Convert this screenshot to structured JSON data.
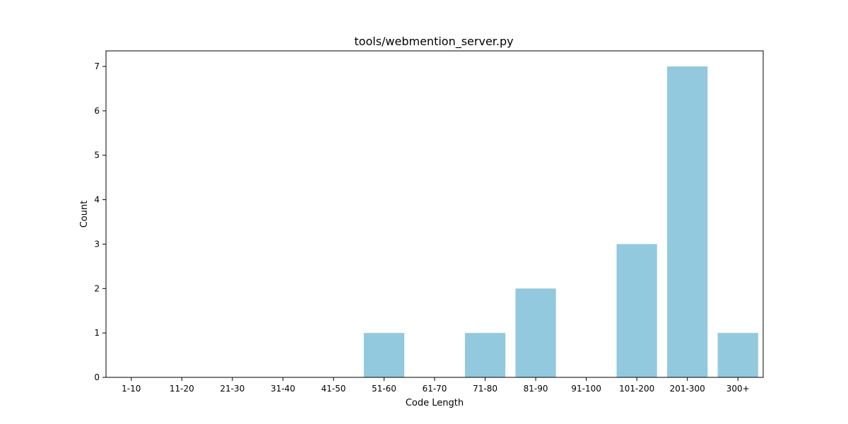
{
  "chart_data": {
    "type": "bar",
    "title": "tools/webmention_server.py",
    "xlabel": "Code Length",
    "ylabel": "Count",
    "categories": [
      "1-10",
      "11-20",
      "21-30",
      "31-40",
      "41-50",
      "51-60",
      "61-70",
      "71-80",
      "81-90",
      "91-100",
      "101-200",
      "201-300",
      "300+"
    ],
    "values": [
      0,
      0,
      0,
      0,
      0,
      1,
      0,
      1,
      2,
      0,
      3,
      7,
      1
    ],
    "ylim": [
      0,
      7.35
    ],
    "yticks": [
      0,
      1,
      2,
      3,
      4,
      5,
      6,
      7
    ],
    "bar_color": "#92c9de",
    "grid": false,
    "legend": "none"
  }
}
